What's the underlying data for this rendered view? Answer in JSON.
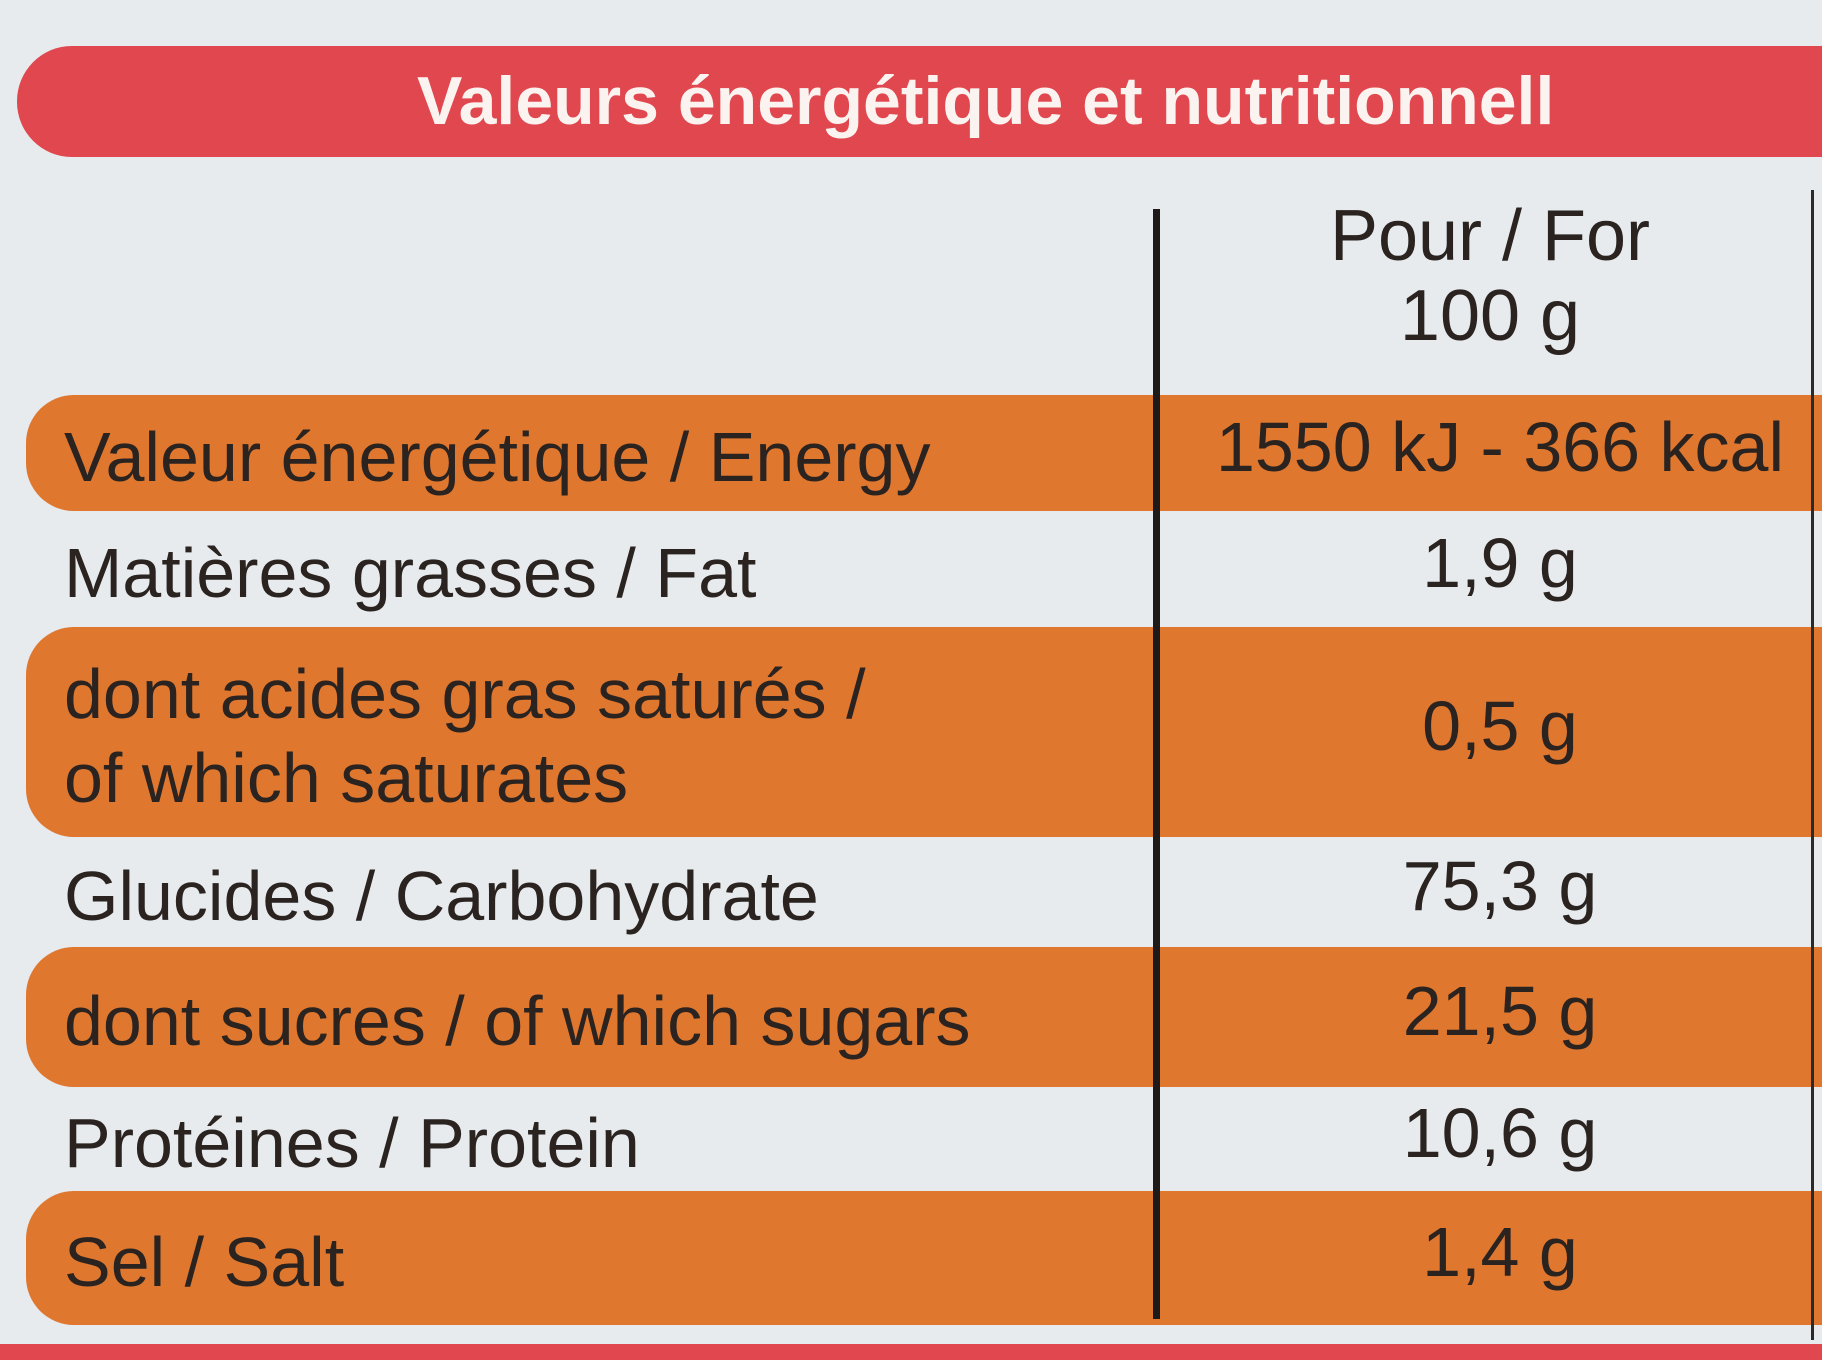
{
  "header": {
    "title": "Valeurs énergétique et nutritionnell"
  },
  "table": {
    "column_header": [
      "Pour / For",
      "100 g"
    ],
    "rows": [
      {
        "label": [
          "Valeur énergétique / Energy"
        ],
        "value": "1550 kJ - 366 kcal"
      },
      {
        "label": [
          "Matières grasses / Fat"
        ],
        "value": "1,9 g"
      },
      {
        "label": [
          "dont acides gras saturés /",
          "of which saturates"
        ],
        "value": "0,5 g"
      },
      {
        "label": [
          "Glucides / Carbohydrate"
        ],
        "value": "75,3 g"
      },
      {
        "label": [
          "dont sucres / of which sugars"
        ],
        "value": "21,5 g"
      },
      {
        "label": [
          "Protéines / Protein"
        ],
        "value": "10,6 g"
      },
      {
        "label": [
          "Sel / Salt"
        ],
        "value": "1,4 g"
      }
    ]
  }
}
